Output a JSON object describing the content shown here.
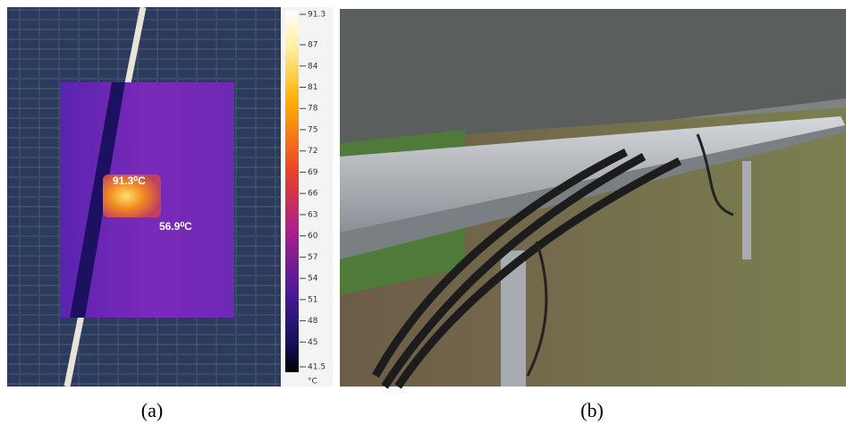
{
  "panel_a": {
    "colorbar": {
      "ticks": [
        91.3,
        87,
        84,
        81,
        78,
        75,
        72,
        69,
        66,
        63,
        60,
        57,
        54,
        51,
        48,
        45,
        41.5
      ],
      "unit": "°C"
    },
    "annotations": [
      "91.3⁰C",
      "56.9⁰C"
    ],
    "caption": "(a)"
  },
  "panel_b": {
    "caption": "(b)"
  }
}
